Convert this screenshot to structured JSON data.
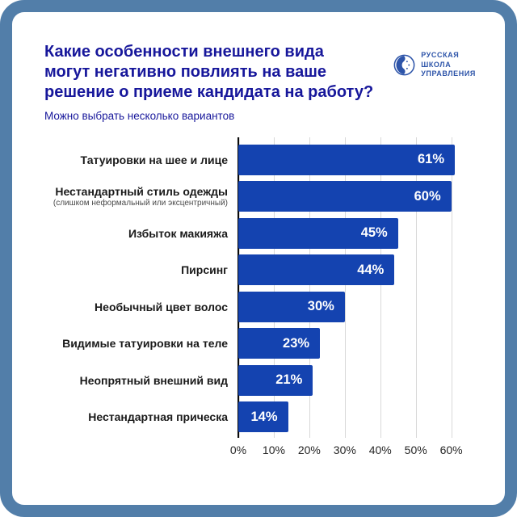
{
  "header": {
    "title_lines": [
      "Какие особенности внешнего вида",
      "могут негативно повлиять на ваше",
      "решение о приеме кандидата на работу?"
    ],
    "subtitle": "Можно выбрать несколько вариантов"
  },
  "logo": {
    "lines": [
      "РУССКАЯ",
      "ШКОЛА",
      "УПРАВЛЕНИЯ"
    ],
    "icon": "rsu-face-globe-icon"
  },
  "colors": {
    "border": "#527EA9",
    "bar": "#1443B0",
    "title": "#17179B",
    "logo": "#2D54A9",
    "gridline": "#D8D8D8"
  },
  "chart_data": {
    "type": "bar",
    "orientation": "horizontal",
    "title": "Какие особенности внешнего вида могут негативно повлиять на ваше решение о приеме кандидата на работу?",
    "subtitle": "Можно выбрать несколько вариантов",
    "categories": [
      "Татуировки на шее и лице",
      "Нестандартный стиль одежды",
      "Избыток макияжа",
      "Пирсинг",
      "Необычный цвет волос",
      "Видимые татуировки на теле",
      "Неопрятный внешний вид",
      "Нестандартная прическа"
    ],
    "sublabels": [
      "",
      "(слишком неформальный или эксцентричный)",
      "",
      "",
      "",
      "",
      "",
      ""
    ],
    "values": [
      61,
      60,
      45,
      44,
      30,
      23,
      21,
      14
    ],
    "value_labels": [
      "61%",
      "60%",
      "45%",
      "44%",
      "30%",
      "23%",
      "21%",
      "14%"
    ],
    "xticks": [
      0,
      10,
      20,
      30,
      40,
      50,
      60
    ],
    "xtick_labels": [
      "0%",
      "10%",
      "20%",
      "30%",
      "40%",
      "50%",
      "60%"
    ],
    "xlim": [
      0,
      66
    ],
    "grid": "vertical",
    "xlabel": "",
    "ylabel": "",
    "legend": "none",
    "bar_color": "#1443B0",
    "value_label_position": "inside-end"
  }
}
